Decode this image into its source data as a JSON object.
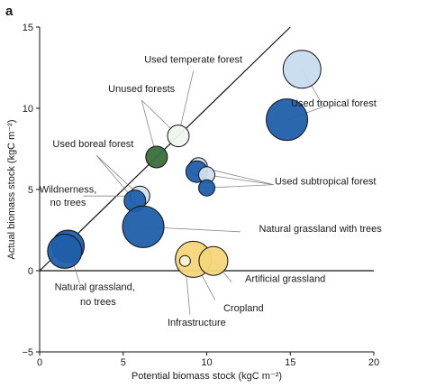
{
  "panel_label": "a",
  "chart_data": {
    "type": "scatter",
    "title": "",
    "xlabel": "Potential biomass stock (kgC m⁻²)",
    "ylabel": "Actual biomass stock (kgC m⁻²)",
    "xlim": [
      0,
      20
    ],
    "ylim": [
      -5,
      15
    ],
    "xticks": [
      0,
      5,
      10,
      15,
      20
    ],
    "yticks": [
      -5,
      0,
      5,
      10,
      15
    ],
    "reference_lines": [
      "1:1 line",
      "y = 0"
    ],
    "grid": false,
    "legend": "none",
    "colors": {
      "used_tropical": "#1f5faa",
      "unused_tropical": "#c7dcee",
      "used_temperate": "#d0dbea",
      "unused_temperate": "#3a6e3c",
      "boreal": "#f2f4f2",
      "light_blue": "#cfe0ef",
      "natural_grassland_trees": "#1f5faa",
      "natural_grassland_no_trees": "#1f5faa",
      "cropland": "#f5d67a",
      "infrastructure": "#f7f3d0",
      "edge": "#111111"
    },
    "points": [
      {
        "x": 15.7,
        "y": 12.4,
        "fill": "unused_tropical"
      },
      {
        "x": 14.8,
        "y": 9.3,
        "fill": "used_tropical"
      },
      {
        "x": 8.3,
        "y": 8.3,
        "fill": "boreal"
      },
      {
        "x": 7.0,
        "y": 7.0,
        "fill": "unused_temperate"
      },
      {
        "x": 9.5,
        "y": 6.4,
        "fill": "light_blue"
      },
      {
        "x": 9.4,
        "y": 6.1,
        "fill": "used_tropical"
      },
      {
        "x": 10.0,
        "y": 5.9,
        "fill": "light_blue"
      },
      {
        "x": 10.0,
        "y": 5.1,
        "fill": "used_tropical"
      },
      {
        "x": 6.0,
        "y": 4.6,
        "fill": "light_blue"
      },
      {
        "x": 5.7,
        "y": 4.3,
        "fill": "used_tropical"
      },
      {
        "x": 6.2,
        "y": 2.7,
        "fill": "natural_grassland_trees"
      },
      {
        "x": 1.8,
        "y": 1.6,
        "fill": "boreal"
      },
      {
        "x": 1.7,
        "y": 1.5,
        "fill": "natural_grassland_no_trees"
      },
      {
        "x": 1.5,
        "y": 1.2,
        "fill": "natural_grassland_no_trees"
      },
      {
        "x": 9.2,
        "y": 0.7,
        "fill": "cropland"
      },
      {
        "x": 10.4,
        "y": 0.6,
        "fill": "cropland"
      },
      {
        "x": 8.7,
        "y": 0.6,
        "fill": "infrastructure"
      }
    ],
    "annotations": [
      {
        "label": "Used temperate forest",
        "x": 9.2,
        "y": 12.8
      },
      {
        "label": "Unused forests",
        "x": 6.1,
        "y": 11.0
      },
      {
        "label": "Used tropical forest",
        "x": 17.6,
        "y": 10.1
      },
      {
        "label": "Used boreal forest",
        "x": 3.2,
        "y": 7.6
      },
      {
        "label": "Used subtropical forest",
        "x": 17.1,
        "y": 5.3
      },
      {
        "label": "Wildnerness,",
        "x": 1.7,
        "y": 4.8
      },
      {
        "label": "no trees",
        "x": 1.7,
        "y": 4.0
      },
      {
        "label": "Natural grassland with trees",
        "x": 16.8,
        "y": 2.4
      },
      {
        "label": "Natural grassland,",
        "x": 3.3,
        "y": -1.2
      },
      {
        "label": "no trees",
        "x": 3.5,
        "y": -2.1
      },
      {
        "label": "Artificial grassland",
        "x": 14.7,
        "y": -0.7
      },
      {
        "label": "Cropland",
        "x": 12.2,
        "y": -2.5
      },
      {
        "label": "Infrastructure",
        "x": 9.4,
        "y": -3.4
      }
    ]
  }
}
